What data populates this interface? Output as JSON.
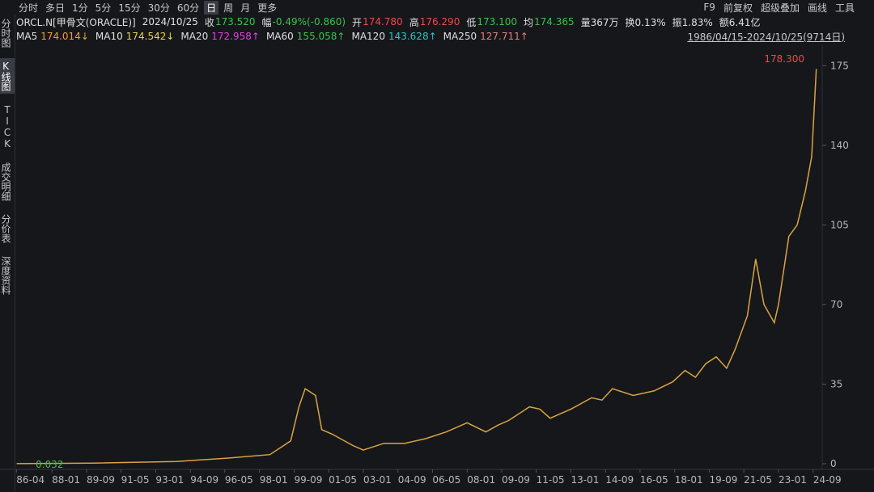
{
  "toolbar": {
    "periods": [
      "分时",
      "多日",
      "1分",
      "5分",
      "15分",
      "30分",
      "60分",
      "日",
      "周",
      "月",
      "更多"
    ],
    "selected": 7,
    "tools": [
      "F9",
      "前复权",
      "超级叠加",
      "画线",
      "工具"
    ]
  },
  "sidebar": {
    "tabs": [
      "分时图",
      "K线图",
      "TICK",
      "成交明细",
      "分价表",
      "深度资料"
    ],
    "selected": 1
  },
  "quote": {
    "symbol": "ORCL.N[甲骨文(ORACLE)]",
    "date": "2024/10/25",
    "fields": [
      {
        "label": "收",
        "value": "173.520",
        "color": "#3cc24a"
      },
      {
        "label": "幅",
        "value": "-0.49%(-0.860)",
        "color": "#3cc24a"
      },
      {
        "label": "开",
        "value": "174.780",
        "color": "#f04848"
      },
      {
        "label": "高",
        "value": "176.290",
        "color": "#f04848"
      },
      {
        "label": "低",
        "value": "173.100",
        "color": "#3cc24a"
      },
      {
        "label": "均",
        "value": "174.365",
        "color": "#3cc24a"
      }
    ],
    "extra": [
      "量367万",
      "换0.13%",
      "振1.83%",
      "额6.41亿"
    ]
  },
  "ma": [
    {
      "name": "MA5",
      "value": "174.014↓",
      "color": "#e8a23a"
    },
    {
      "name": "MA10",
      "value": "174.542↓",
      "color": "#e6d44a"
    },
    {
      "name": "MA20",
      "value": "172.958↑",
      "color": "#e040e0"
    },
    {
      "name": "MA60",
      "value": "155.058↑",
      "color": "#3cc24a"
    },
    {
      "name": "MA120",
      "value": "143.628↑",
      "color": "#33c3c3"
    },
    {
      "name": "MA250",
      "value": "127.711↑",
      "color": "#e08080"
    }
  ],
  "range": "1986/04/15-2024/10/25(9714日)",
  "chart_data": {
    "type": "line",
    "x": [
      1986.3,
      1990,
      1994,
      1996.5,
      1998.5,
      1999.5,
      1999.9,
      2000.2,
      2000.7,
      2001.0,
      2001.5,
      2002.5,
      2003,
      2004,
      2005,
      2006,
      2007,
      2008,
      2008.9,
      2009.5,
      2010,
      2011,
      2011.5,
      2012,
      2013,
      2014,
      2014.5,
      2015,
      2016,
      2017,
      2017.9,
      2018.5,
      2019,
      2019.5,
      2020,
      2020.5,
      2020.9,
      2021.5,
      2021.9,
      2022.3,
      2022.8,
      2023,
      2023.5,
      2023.9,
      2024.3,
      2024.6,
      2024.82
    ],
    "series": [
      {
        "name": "ORCL.N",
        "color": "#d9a441",
        "values": [
          0.03,
          0.3,
          1,
          2.5,
          4,
          10,
          25,
          33,
          30,
          15,
          13,
          8,
          6,
          9,
          9,
          11,
          14,
          18,
          14,
          17,
          19,
          25,
          24,
          20,
          24,
          29,
          28,
          33,
          30,
          32,
          36,
          41,
          38,
          44,
          47,
          42,
          50,
          65,
          90,
          70,
          62,
          70,
          100,
          105,
          120,
          135,
          173.52
        ]
      }
    ],
    "xlim": [
      1986.2,
      2024.95
    ],
    "xticks": [
      {
        "value": 1986.29,
        "label": "86-04"
      },
      {
        "value": 1988.0,
        "label": "88-01"
      },
      {
        "value": 1989.67,
        "label": "89-09"
      },
      {
        "value": 1991.33,
        "label": "91-05"
      },
      {
        "value": 1993.0,
        "label": "93-01"
      },
      {
        "value": 1994.67,
        "label": "94-09"
      },
      {
        "value": 1996.33,
        "label": "96-05"
      },
      {
        "value": 1998.0,
        "label": "98-01"
      },
      {
        "value": 1999.67,
        "label": "99-09"
      },
      {
        "value": 2001.33,
        "label": "01-05"
      },
      {
        "value": 2003.0,
        "label": "03-01"
      },
      {
        "value": 2004.67,
        "label": "04-09"
      },
      {
        "value": 2006.33,
        "label": "06-05"
      },
      {
        "value": 2008.0,
        "label": "08-01"
      },
      {
        "value": 2009.67,
        "label": "09-09"
      },
      {
        "value": 2011.33,
        "label": "11-05"
      },
      {
        "value": 2013.0,
        "label": "13-01"
      },
      {
        "value": 2014.67,
        "label": "14-09"
      },
      {
        "value": 2016.33,
        "label": "16-05"
      },
      {
        "value": 2018.0,
        "label": "18-01"
      },
      {
        "value": 2019.67,
        "label": "19-09"
      },
      {
        "value": 2021.33,
        "label": "21-05"
      },
      {
        "value": 2023.0,
        "label": "23-01"
      },
      {
        "value": 2024.67,
        "label": "24-09"
      }
    ],
    "ylim": [
      0,
      184
    ],
    "yticks": [
      0,
      35,
      70,
      105,
      140,
      175
    ],
    "max_label": "178.300",
    "min_label": "0.032"
  }
}
